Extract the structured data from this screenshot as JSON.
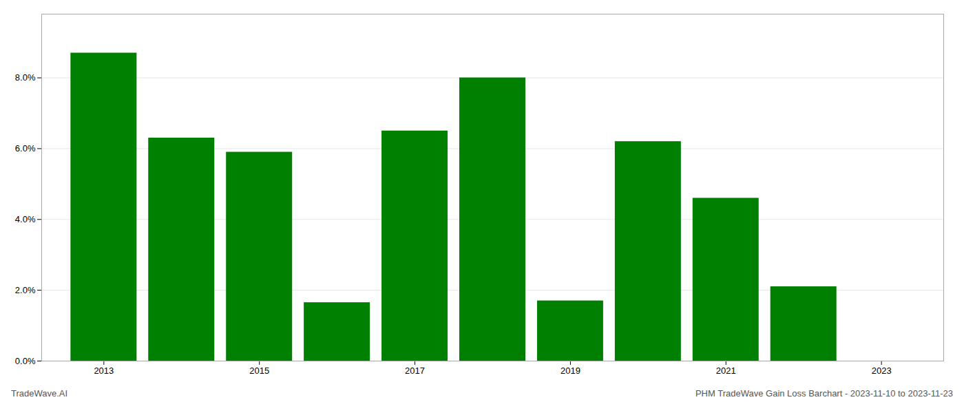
{
  "chart_data": {
    "type": "bar",
    "title": "PHM TradeWave Gain Loss Barchart - 2023-11-10 to 2023-11-23",
    "annotations": [
      "TradeWave.AI"
    ],
    "x": [
      2013,
      2014,
      2015,
      2016,
      2017,
      2018,
      2019,
      2020,
      2021,
      2022,
      2023
    ],
    "values": [
      0.087,
      0.063,
      0.059,
      0.0165,
      0.065,
      0.08,
      0.017,
      0.062,
      0.046,
      0.021,
      0.0
    ],
    "color": "#008000",
    "xlim": [
      2012.2,
      2023.8
    ],
    "xticks": [
      2013,
      2015,
      2017,
      2019,
      2021,
      2023
    ],
    "ylim": [
      0,
      0.098
    ],
    "yticks": [
      {
        "value": 0.0,
        "label": "0.0%"
      },
      {
        "value": 0.02,
        "label": "2.0%"
      },
      {
        "value": 0.04,
        "label": "4.0%"
      },
      {
        "value": 0.06,
        "label": "6.0%"
      },
      {
        "value": 0.08,
        "label": "8.0%"
      }
    ],
    "grid": true
  }
}
